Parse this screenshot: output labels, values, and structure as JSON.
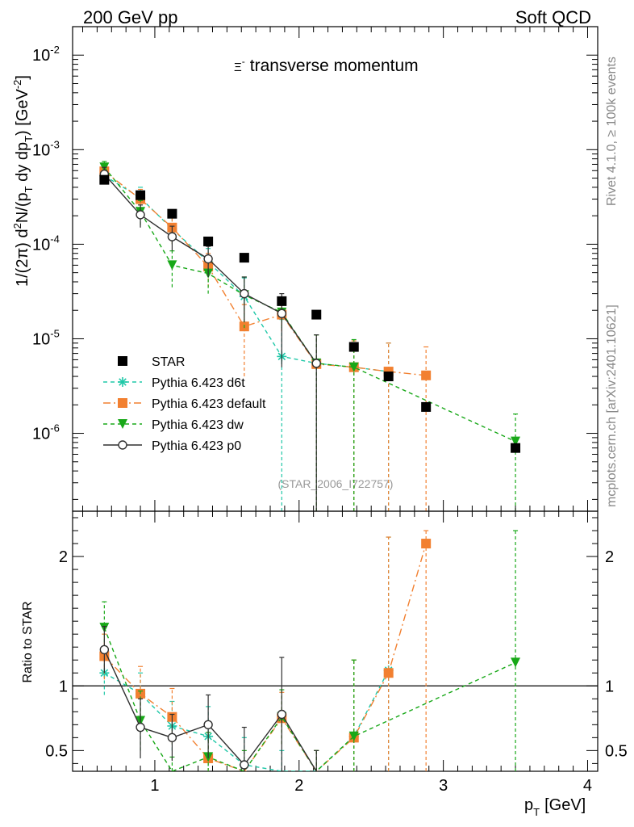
{
  "header": {
    "left": "200 GeV pp",
    "right": "Soft QCD"
  },
  "side_text": {
    "right_top": "Rivet 4.1.0, ≥ 100k events",
    "right_bottom": "mcplots.cern.ch [arXiv:2401.10621]"
  },
  "chart_data": {
    "type": "scatter",
    "title": "Ξ⁻ transverse momentum",
    "title_main": "transverse momentum",
    "title_symbol": "Ξ",
    "watermark": "(STAR_2006_I722757)",
    "xlabel": "p_T [GeV]",
    "xlabel_main": "p",
    "xlabel_sub": "T",
    "xlabel_unit": "[GeV]",
    "ylabel": "1/(2π) d²N/(p_T dy dp_T) [GeV⁻²]",
    "ylabel_parts": {
      "a": "1/(2",
      "pi": "π",
      "b": ")  d",
      "sq": "2",
      "c": "N/(p",
      "t1": "T",
      "d": " dy dp",
      "t2": "T",
      "e": ") [GeV",
      "exp": "-2",
      "f": "]"
    },
    "xlim": [
      0.43,
      4.07
    ],
    "ylim": [
      1.5e-07,
      0.02
    ],
    "ratio_ylabel": "Ratio to STAR",
    "ratio_ylim": [
      0.34,
      2.35
    ],
    "x_ticks": [
      "1",
      "2",
      "3",
      "4"
    ],
    "y_ticks": [
      {
        "value": 1e-06,
        "mant": "10",
        "exp": "-6"
      },
      {
        "value": 1e-05,
        "mant": "10",
        "exp": "-5"
      },
      {
        "value": 0.0001,
        "mant": "10",
        "exp": "-4"
      },
      {
        "value": 0.001,
        "mant": "10",
        "exp": "-3"
      },
      {
        "value": 0.01,
        "mant": "10",
        "exp": "-2"
      }
    ],
    "ratio_ticks": [
      {
        "value": 0.5,
        "label": "0.5"
      },
      {
        "value": 1,
        "label": "1"
      },
      {
        "value": 2,
        "label": "2"
      }
    ],
    "legend": {
      "position": "lower-left"
    },
    "series": [
      {
        "name": "STAR",
        "color": "#000000",
        "marker": "square",
        "line": "none",
        "x": [
          0.65,
          0.9,
          1.12,
          1.37,
          1.62,
          1.88,
          2.12,
          2.38,
          2.62,
          2.88,
          3.5
        ],
        "y": [
          0.00048,
          0.00033,
          0.00021,
          0.000107,
          7.2e-05,
          2.5e-05,
          1.8e-05,
          8.2e-06,
          4e-06,
          1.9e-06,
          7e-07
        ],
        "err": []
      },
      {
        "name": "Pythia 6.423 d6t",
        "color": "#20c8a8",
        "marker": "star",
        "line": "dashed",
        "x": [
          0.65,
          0.9,
          1.12,
          1.37,
          1.62,
          1.88,
          2.12,
          2.38,
          2.62
        ],
        "y": [
          0.00053,
          0.00031,
          0.000145,
          6.5e-05,
          2.8e-05,
          6.5e-06,
          5.5e-06,
          5e-06,
          4.5e-06
        ],
        "err": [
          [
            0.00043,
            0.00065
          ],
          [
            0.00023,
            0.0004
          ],
          [
            0.0001,
            0.00019
          ],
          [
            4e-05,
            9e-05
          ],
          [
            1.2e-05,
            4.4e-05
          ],
          [
            1.5e-07,
            1.6e-05
          ],
          [
            1.5e-07,
            1.1e-05
          ],
          [
            1.5e-07,
            9e-06
          ],
          [
            1.5e-07,
            9e-06
          ]
        ],
        "ratio": [
          1.1,
          0.94,
          0.69,
          0.61,
          0.39,
          0.26,
          0.3,
          0.61,
          1.12
        ],
        "ratio_err": [
          [
            0.93,
            1.27
          ],
          [
            0.76,
            1.1
          ],
          [
            0.5,
            0.88
          ],
          [
            0.38,
            0.84
          ],
          [
            0.2,
            0.6
          ],
          [
            0.2,
            0.5
          ],
          [
            0.2,
            0.5
          ],
          [
            0.2,
            1.2
          ],
          [
            0.2,
            2.15
          ]
        ]
      },
      {
        "name": "Pythia 6.423 default",
        "color": "#f28030",
        "marker": "square",
        "line": "dashdot",
        "x": [
          0.65,
          0.9,
          1.12,
          1.37,
          1.62,
          1.88,
          2.12,
          2.38,
          2.62,
          2.88
        ],
        "y": [
          0.00059,
          0.0003,
          0.00015,
          5.8e-05,
          1.35e-05,
          1.8e-05,
          5.4e-06,
          5e-06,
          4.5e-06,
          4.1e-06
        ],
        "err": [
          [
            0.00048,
            0.0007
          ],
          [
            0.00022,
            0.00038
          ],
          [
            0.0001,
            0.0002
          ],
          [
            3.5e-05,
            8e-05
          ],
          [
            4e-06,
            2.3e-05
          ],
          [
            1.2e-05,
            2.5e-05
          ],
          [
            1.5e-07,
            1.1e-05
          ],
          [
            1.5e-07,
            9.5e-06
          ],
          [
            1.5e-07,
            9e-06
          ],
          [
            1.5e-07,
            8.2e-06
          ]
        ],
        "ratio": [
          1.23,
          0.94,
          0.76,
          0.44,
          0.2,
          0.75,
          0.3,
          0.6,
          1.1,
          2.1
        ],
        "ratio_err": [
          [
            1.05,
            1.4
          ],
          [
            0.76,
            1.15
          ],
          [
            0.55,
            0.98
          ],
          [
            0.26,
            0.64
          ],
          [
            0.1,
            0.3
          ],
          [
            0.55,
            0.95
          ],
          [
            0.2,
            0.5
          ],
          [
            0.2,
            1.2
          ],
          [
            0.2,
            2.15
          ],
          [
            0.2,
            2.2
          ]
        ]
      },
      {
        "name": "Pythia 6.423 dw",
        "color": "#18a818",
        "marker": "triangle-down",
        "line": "dashed",
        "x": [
          0.65,
          0.9,
          1.12,
          1.37,
          1.62,
          1.88,
          2.12,
          2.38,
          3.5
        ],
        "y": [
          0.00065,
          0.00022,
          6e-05,
          4.9e-05,
          2.9e-05,
          1.9e-05,
          5.5e-06,
          5e-06,
          8.2e-07
        ],
        "err": [
          [
            0.00055,
            0.00075
          ],
          [
            0.00016,
            0.00029
          ],
          [
            3.5e-05,
            8.5e-05
          ],
          [
            3e-05,
            6.8e-05
          ],
          [
            1.3e-05,
            4.5e-05
          ],
          [
            1.3e-05,
            2.6e-05
          ],
          [
            1.5e-07,
            1.1e-05
          ],
          [
            1.5e-07,
            9.8e-06
          ],
          [
            1.5e-07,
            1.6e-06
          ]
        ],
        "ratio": [
          1.45,
          0.73,
          0.28,
          0.45,
          0.3,
          0.76,
          0.3,
          0.61,
          1.18
        ],
        "ratio_err": [
          [
            1.25,
            1.65
          ],
          [
            0.5,
            0.96
          ],
          [
            0.2,
            0.45
          ],
          [
            0.27,
            0.64
          ],
          [
            0.2,
            0.5
          ],
          [
            0.55,
            0.97
          ],
          [
            0.2,
            0.5
          ],
          [
            0.2,
            1.2
          ],
          [
            0.2,
            2.2
          ]
        ]
      },
      {
        "name": "Pythia 6.423 p0",
        "color": "#303030",
        "marker": "open-circle",
        "line": "solid",
        "x": [
          0.65,
          0.9,
          1.12,
          1.37,
          1.62,
          1.88,
          2.12
        ],
        "y": [
          0.00055,
          0.000205,
          0.00012,
          7e-05,
          3e-05,
          1.85e-05,
          5.5e-06
        ],
        "err": [
          [
            0.00045,
            0.00065
          ],
          [
            0.00015,
            0.00026
          ],
          [
            8.5e-05,
            0.000155
          ],
          [
            4.5e-05,
            9.5e-05
          ],
          [
            1.5e-05,
            4.5e-05
          ],
          [
            5e-06,
            3e-05
          ],
          [
            1.5e-07,
            1.1e-05
          ]
        ],
        "ratio": [
          1.28,
          0.68,
          0.6,
          0.7,
          0.39,
          0.78,
          0.2
        ],
        "ratio_err": [
          [
            1.1,
            1.46
          ],
          [
            0.44,
            0.9
          ],
          [
            0.42,
            0.78
          ],
          [
            0.44,
            0.93
          ],
          [
            0.18,
            0.68
          ],
          [
            0.3,
            1.22
          ],
          [
            0.2,
            0.5
          ]
        ]
      }
    ]
  }
}
